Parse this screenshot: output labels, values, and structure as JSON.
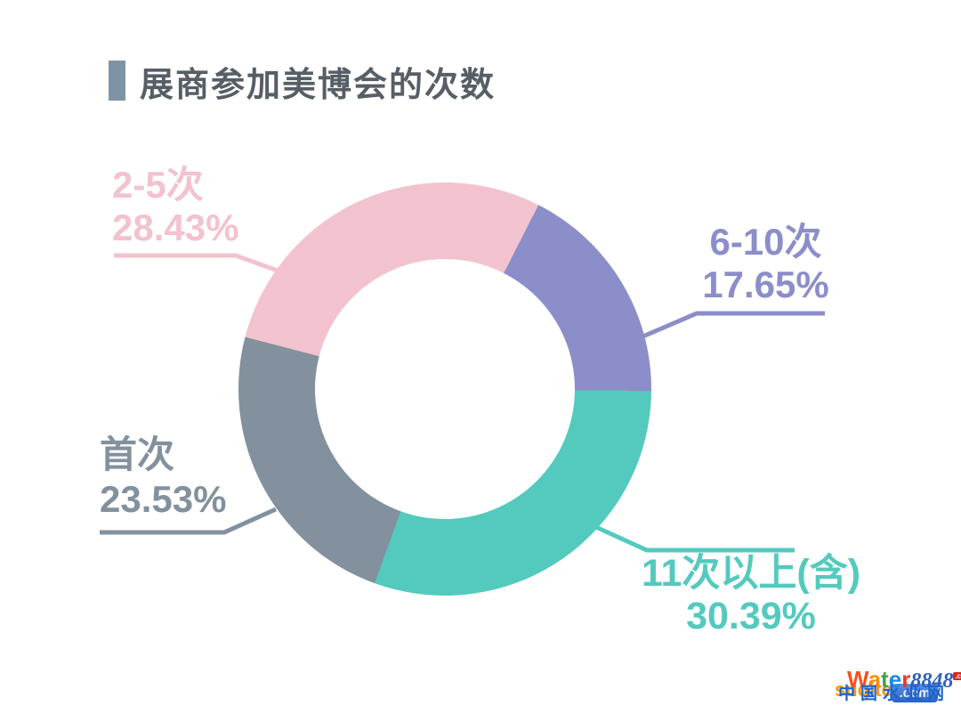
{
  "title": {
    "text": "展商参加美博会的次数",
    "text_color": "#575e66",
    "bar_color": "#7e94a4"
  },
  "chart_data": {
    "type": "pie",
    "subtype": "donut",
    "title": "展商参加美博会的次数",
    "start_angle_deg": 284.6,
    "direction": "clockwise",
    "legend": "none",
    "labels": "outside-with-leader-lines",
    "slices": [
      {
        "label": "2-5次",
        "value": 28.43,
        "display": "28.43%",
        "color": "#f2c3ce"
      },
      {
        "label": "6-10次",
        "value": 17.65,
        "display": "17.65%",
        "color": "#8b8ec8"
      },
      {
        "label": "11次以上(含)",
        "value": 30.39,
        "display": "30.39%",
        "color": "#53cabd"
      },
      {
        "label": "首次",
        "value": 23.53,
        "display": "23.53%",
        "color": "#82919d"
      }
    ]
  },
  "watermark": {
    "brand_letters": [
      [
        "W",
        "#f4511e"
      ],
      [
        "a",
        "#fb8c00"
      ],
      [
        "t",
        "#43a047"
      ],
      [
        "e",
        "#1e88e5"
      ],
      [
        "r",
        "#e53935"
      ]
    ],
    "brand_suffix": "8848",
    "brand_suffix_color": "#2d5fbe",
    "badge_text": ".com",
    "sub_brand": "suqitech",
    "sub_brand_color": "#fb8c00",
    "site_name": "中国水业网",
    "site_name_color": "#1a63cc",
    "site_com": ".com"
  }
}
